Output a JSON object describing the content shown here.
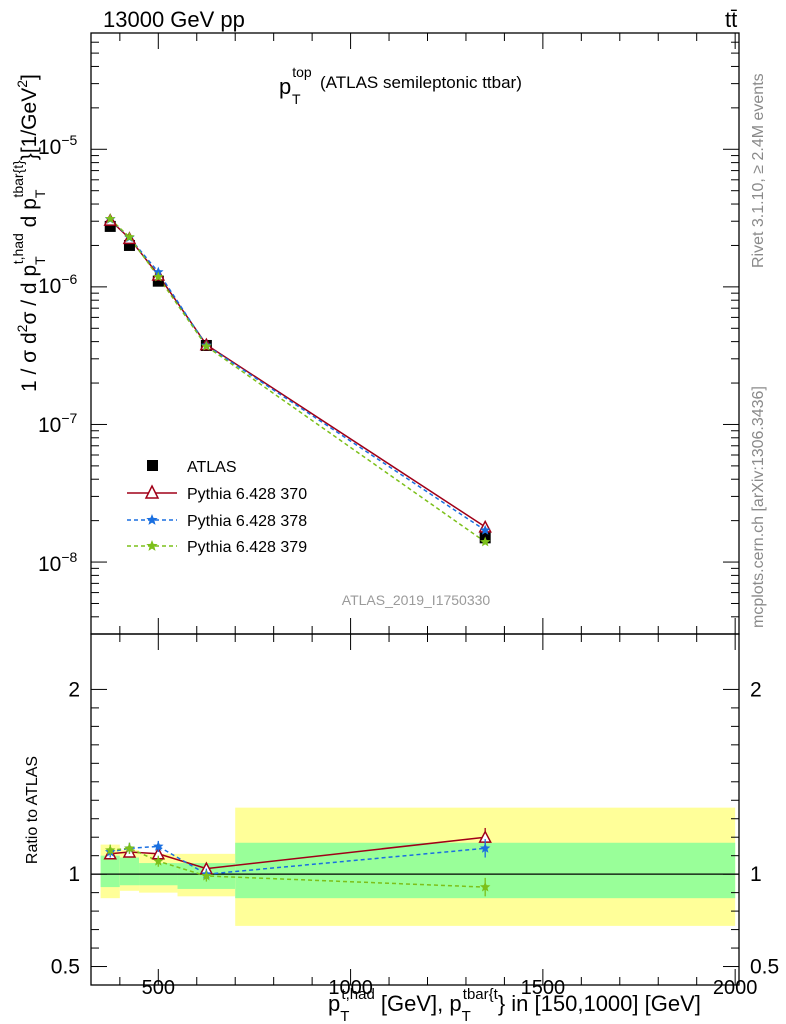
{
  "header": {
    "left": "13000 GeV pp",
    "right": "tt̄"
  },
  "side_labels": {
    "rivet": "Rivet 3.1.10, ≥ 2.4M events",
    "mcplots": "mcplots.cern.ch [arXiv:1306.3436]"
  },
  "chart_data": [
    {
      "type": "line",
      "panel": "main",
      "title_main": "p",
      "title_sup": "top",
      "title_sub": "T",
      "title_rest": "(ATLAS semileptonic ttbar)",
      "watermark": "ATLAS_2019_I1750330",
      "ylabel_text": "1 / σ d²σ / d p_T^{t,had} d p_T^{tbar{t}}[1/GeV²]",
      "ylabel_parts": {
        "a": "1 / σ d",
        "b": "2",
        "c": "σ / d p",
        "d": "T",
        "e": "t,had",
        "f": " d p",
        "g": "T",
        "h": "tbar{t}",
        "i": "}[1/GeV",
        "j": "2",
        "k": "]"
      },
      "y_scale": "log",
      "xlim": [
        325,
        2010
      ],
      "ylim": [
        3e-09,
        7e-05
      ],
      "y_tick_labels": [
        {
          "base": "10",
          "exp": "−5"
        },
        {
          "base": "10",
          "exp": "−6"
        },
        {
          "base": "10",
          "exp": "−7"
        },
        {
          "base": "10",
          "exp": "−8"
        }
      ],
      "y_tick_values": [
        1e-05,
        1e-06,
        1e-07,
        1e-08
      ],
      "legend_position": "lower-left",
      "series": [
        {
          "name": "ATLAS",
          "style": "data",
          "color": "#000000",
          "x": [
            375,
            425,
            500,
            625,
            1350
          ],
          "y": [
            2.75e-06,
            2e-06,
            1.1e-06,
            3.75e-07,
            1.5e-08
          ]
        },
        {
          "name": "Pythia 6.428 370",
          "style": "triangle",
          "color": "#a00018",
          "x": [
            375,
            425,
            500,
            625,
            1350
          ],
          "y": [
            3.05e-06,
            2.25e-06,
            1.22e-06,
            3.8e-07,
            1.8e-08
          ]
        },
        {
          "name": "Pythia 6.428 378",
          "style": "star",
          "color": "#1a6fe0",
          "x": [
            375,
            425,
            500,
            625,
            1350
          ],
          "y": [
            3.1e-06,
            2.28e-06,
            1.28e-06,
            3.75e-07,
            1.7e-08
          ]
        },
        {
          "name": "Pythia 6.428 379",
          "style": "star",
          "color": "#7cc01a",
          "x": [
            375,
            425,
            500,
            625,
            1350
          ],
          "y": [
            3.12e-06,
            2.3e-06,
            1.18e-06,
            3.7e-07,
            1.4e-08
          ]
        }
      ]
    },
    {
      "type": "line",
      "panel": "ratio",
      "ylabel": "Ratio to ATLAS",
      "xlabel_parts": {
        "a": "p",
        "b": "T",
        "c": "t,had",
        "d": " [GeV], p",
        "e": "T",
        "f": "tbar{t",
        "g": "} in [150,1000] [GeV]"
      },
      "xlim": [
        325,
        2010
      ],
      "ylim": [
        0.4,
        2.3
      ],
      "y_tick_values": [
        0.5,
        1,
        2
      ],
      "y_tick_labels": [
        "0.5",
        "1",
        "2"
      ],
      "x_tick_values": [
        500,
        1000,
        1500,
        2000
      ],
      "x_tick_labels": [
        "500",
        "1000",
        "1500",
        "2000"
      ],
      "bands": [
        {
          "x0": 350,
          "x1": 400,
          "in_lo": 0.93,
          "in_hi": 1.1,
          "out_lo": 0.87,
          "out_hi": 1.16
        },
        {
          "x0": 400,
          "x1": 450,
          "in_lo": 0.94,
          "in_hi": 1.09,
          "out_lo": 0.91,
          "out_hi": 1.13
        },
        {
          "x0": 450,
          "x1": 550,
          "in_lo": 0.94,
          "in_hi": 1.06,
          "out_lo": 0.9,
          "out_hi": 1.11
        },
        {
          "x0": 550,
          "x1": 700,
          "in_lo": 0.92,
          "in_hi": 1.06,
          "out_lo": 0.88,
          "out_hi": 1.11
        },
        {
          "x0": 700,
          "x1": 2000,
          "in_lo": 0.87,
          "in_hi": 1.17,
          "out_lo": 0.72,
          "out_hi": 1.36
        }
      ],
      "series": [
        {
          "name": "Pythia 6.428 370",
          "style": "triangle",
          "color": "#a00018",
          "x": [
            375,
            425,
            500,
            625,
            1350
          ],
          "y": [
            1.11,
            1.12,
            1.11,
            1.03,
            1.2
          ],
          "err": [
            0.03,
            0.03,
            0.03,
            0.03,
            0.05
          ]
        },
        {
          "name": "Pythia 6.428 378",
          "style": "star",
          "color": "#1a6fe0",
          "x": [
            375,
            425,
            500,
            625,
            1350
          ],
          "y": [
            1.12,
            1.14,
            1.15,
            1.0,
            1.14
          ],
          "err": [
            0.03,
            0.03,
            0.03,
            0.03,
            0.05
          ]
        },
        {
          "name": "Pythia 6.428 379",
          "style": "star",
          "color": "#7cc01a",
          "x": [
            375,
            425,
            500,
            625,
            1350
          ],
          "y": [
            1.13,
            1.14,
            1.07,
            0.99,
            0.93
          ],
          "err": [
            0.03,
            0.03,
            0.03,
            0.03,
            0.05
          ]
        }
      ]
    }
  ]
}
